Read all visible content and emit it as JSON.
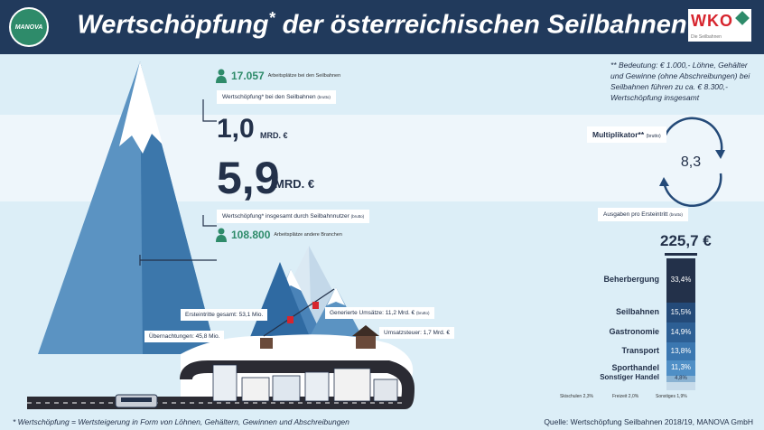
{
  "header": {
    "logo_text": "MANOVA",
    "title_main": "Wertschöpfung",
    "title_star": "*",
    "title_rest": "der österreichischen Seilbahnen",
    "wko_text": "WKO",
    "wko_sub": "Die Seilbahnen"
  },
  "note": "** Bedeutung: € 1.000,- Löhne, Gehälter und Gewinne (ohne Abschreibungen) bei Seilbahnen führen zu ca. € 8.300,- Wertschöpfung insgesamt",
  "jobs_top": {
    "value": "17.057",
    "label": "Arbeitsplätze bei den Seilbahnen"
  },
  "tag_top": {
    "text": "Wertschöpfung* bei den Seilbahnen",
    "sub": "(brutto)"
  },
  "value_small": {
    "value": "1,0",
    "unit": "MRD. €"
  },
  "value_big": {
    "value": "5,9",
    "unit": "MRD. €"
  },
  "tag_bottom": {
    "text": "Wertschöpfung* insgesamt durch Seilbahnnutzer",
    "sub": "(brutto)"
  },
  "jobs_bottom": {
    "value": "108.800",
    "label": "Arbeitsplätze andere Branchen"
  },
  "multiplier": {
    "label": "Multiplikator**",
    "sub": "(brutto)",
    "value": "8,3"
  },
  "spending": {
    "label": "Ausgaben pro Ersteintritt",
    "sub": "(brutto)",
    "total": "225,7 €"
  },
  "scene": {
    "ersteintritte": "Ersteintritte gesamt: 53,1 Mio.",
    "uebernachtungen": "Übernachtungen: 45,8 Mio.",
    "umsaetze": "Generierte Umsätze: 11,2 Mrd. €",
    "umsaetze_sub": "(brutto)",
    "umsatzsteuer": "Umsatzsteuer: 1,7 Mrd. €"
  },
  "chart_data": {
    "type": "bar",
    "stacked": true,
    "categories": [
      "Beherbergung",
      "Seilbahnen",
      "Gastronomie",
      "Transport",
      "Sporthandel",
      "Sonstiger Handel",
      "Skischulen",
      "Freizeit",
      "Sonstiges"
    ],
    "values": [
      33.4,
      15.5,
      14.9,
      13.8,
      11.3,
      4.8,
      2.3,
      2.0,
      1.9
    ],
    "value_labels": [
      "33,4%",
      "15,5%",
      "14,9%",
      "13,8%",
      "11,3%",
      "4,8%",
      "2,3%",
      "2,0%",
      "1,9%"
    ],
    "minor_labels": [
      "Skischulen 2,3%",
      "Freizeit 2,0%",
      "Sonstiges 1,9%"
    ],
    "colors": [
      "#23314a",
      "#244a78",
      "#2d5f94",
      "#3b77b0",
      "#4f8fc6",
      "#8ab2d2",
      "#c7dbea"
    ]
  },
  "footer": {
    "left": "* Wertschöpfung = Wertsteigerung in Form von Löhnen, Gehältern, Gewinnen und Abschreibungen",
    "right": "Quelle: Wertschöpfung Seilbahnen 2018/19, MANOVA GmbH"
  }
}
